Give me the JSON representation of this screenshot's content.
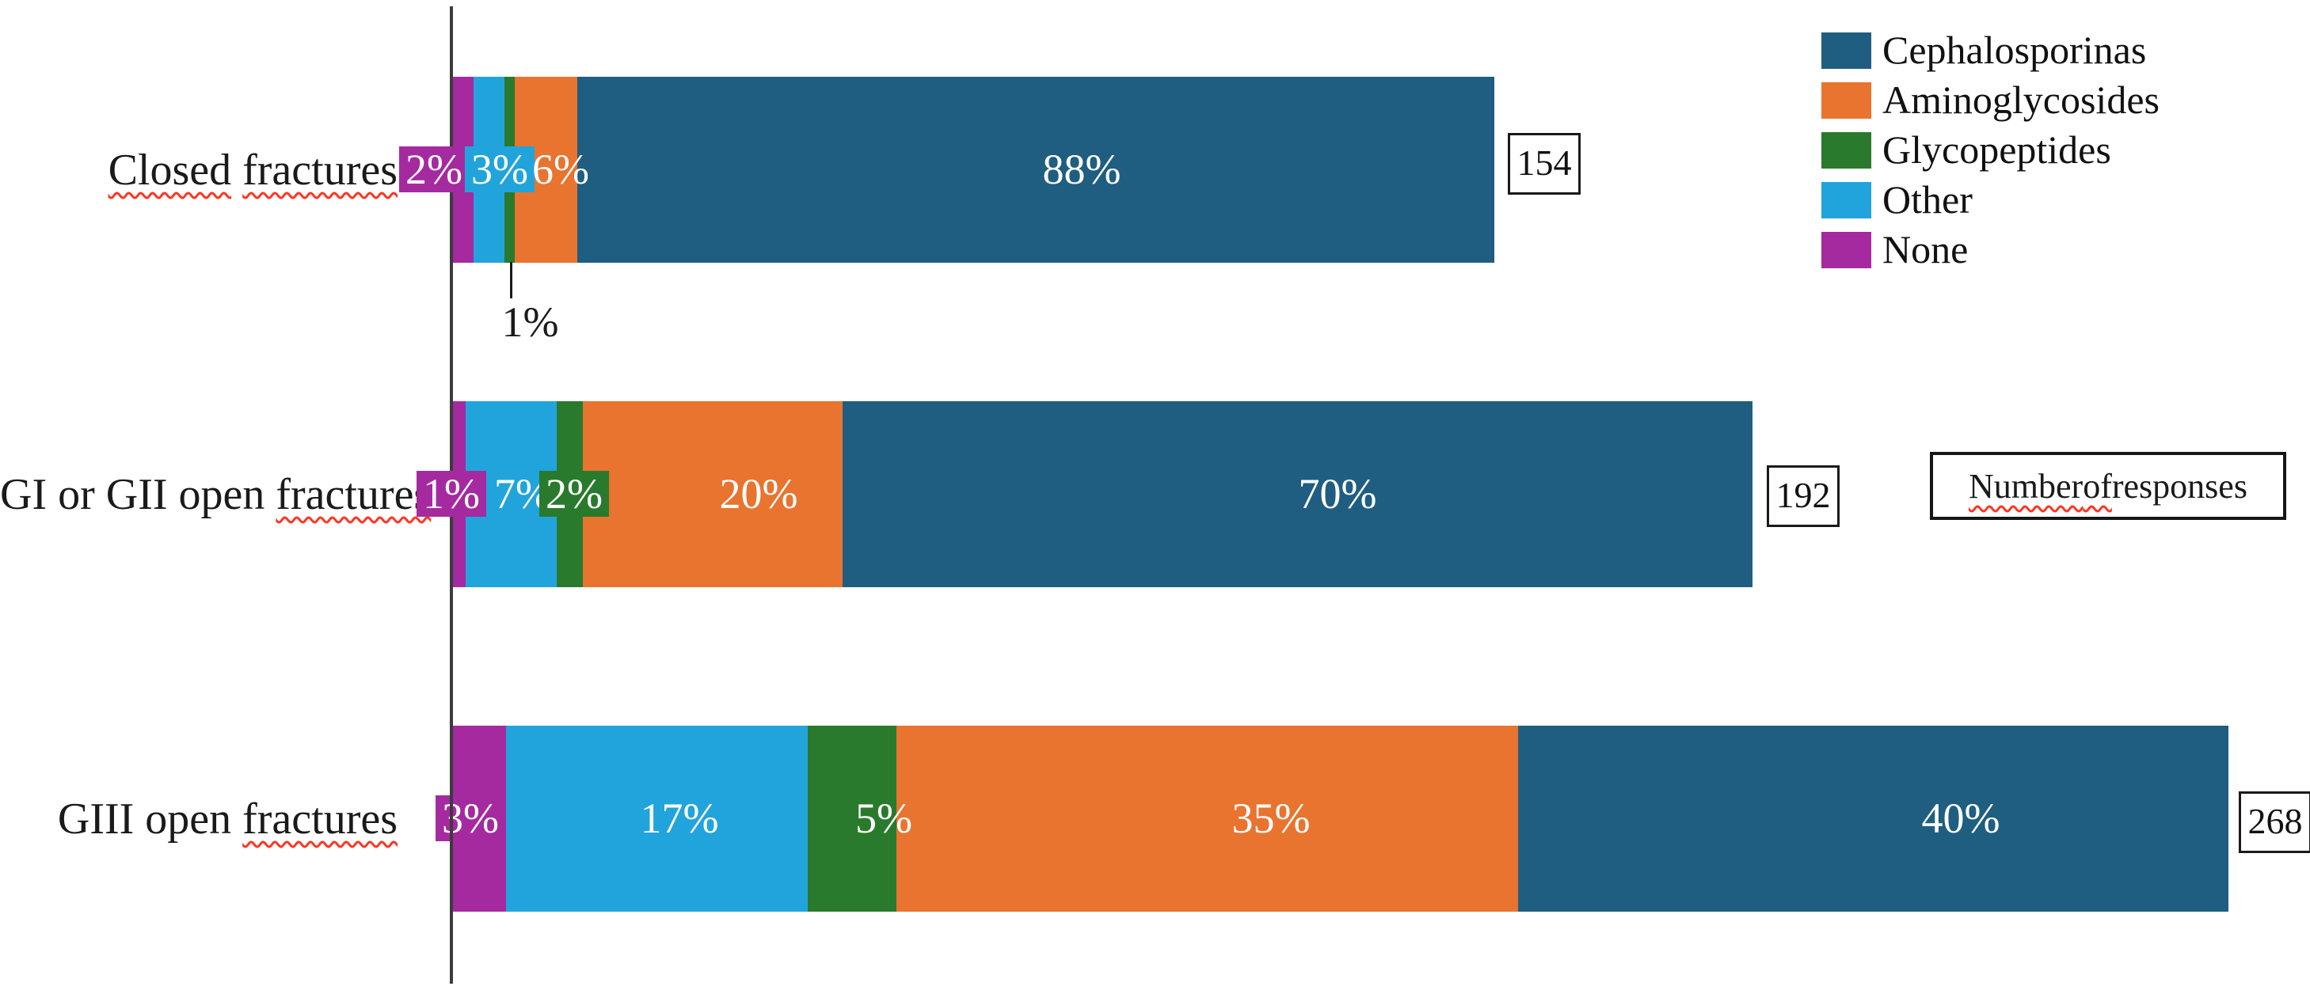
{
  "chart_data": {
    "type": "bar",
    "variant": "horizontal-stacked",
    "title": "",
    "grid": false,
    "legend_position": "top-right",
    "value_suffix": "%",
    "stack_order_left_to_right": [
      "None",
      "Other",
      "Glycopeptides",
      "Aminoglycosides",
      "Cephalosporinas"
    ],
    "series": [
      {
        "name": "Cephalosporinas",
        "color": "#1F5E80"
      },
      {
        "name": "Aminoglycosides",
        "color": "#E8742F"
      },
      {
        "name": "Glycopeptides",
        "color": "#297A2D"
      },
      {
        "name": "Other",
        "color": "#21A4DC"
      },
      {
        "name": "None",
        "color": "#A52AA0"
      }
    ],
    "categories": [
      {
        "label": "Closed fractures",
        "misspelled_words": [
          "Closed",
          "fractures"
        ],
        "total_responses": 154,
        "values": {
          "None": 2,
          "Other": 3,
          "Glycopeptides": 1,
          "Aminoglycosides": 6,
          "Cephalosporinas": 88
        }
      },
      {
        "label": "GI or GII open fractures",
        "misspelled_words": [
          "fractures"
        ],
        "total_responses": 192,
        "values": {
          "None": 1,
          "Other": 7,
          "Glycopeptides": 2,
          "Aminoglycosides": 20,
          "Cephalosporinas": 70
        }
      },
      {
        "label": "GIII open fractures",
        "misspelled_words": [
          "fractures"
        ],
        "total_responses": 268,
        "values": {
          "None": 3,
          "Other": 17,
          "Glycopeptides": 5,
          "Aminoglycosides": 35,
          "Cephalosporinas": 40
        }
      }
    ],
    "callout": {
      "category": "Closed fractures",
      "series": "Glycopeptides",
      "label": "1%"
    },
    "note_box": {
      "text": "Number of responses",
      "misspelled_words": [
        "Number",
        "of"
      ]
    }
  }
}
